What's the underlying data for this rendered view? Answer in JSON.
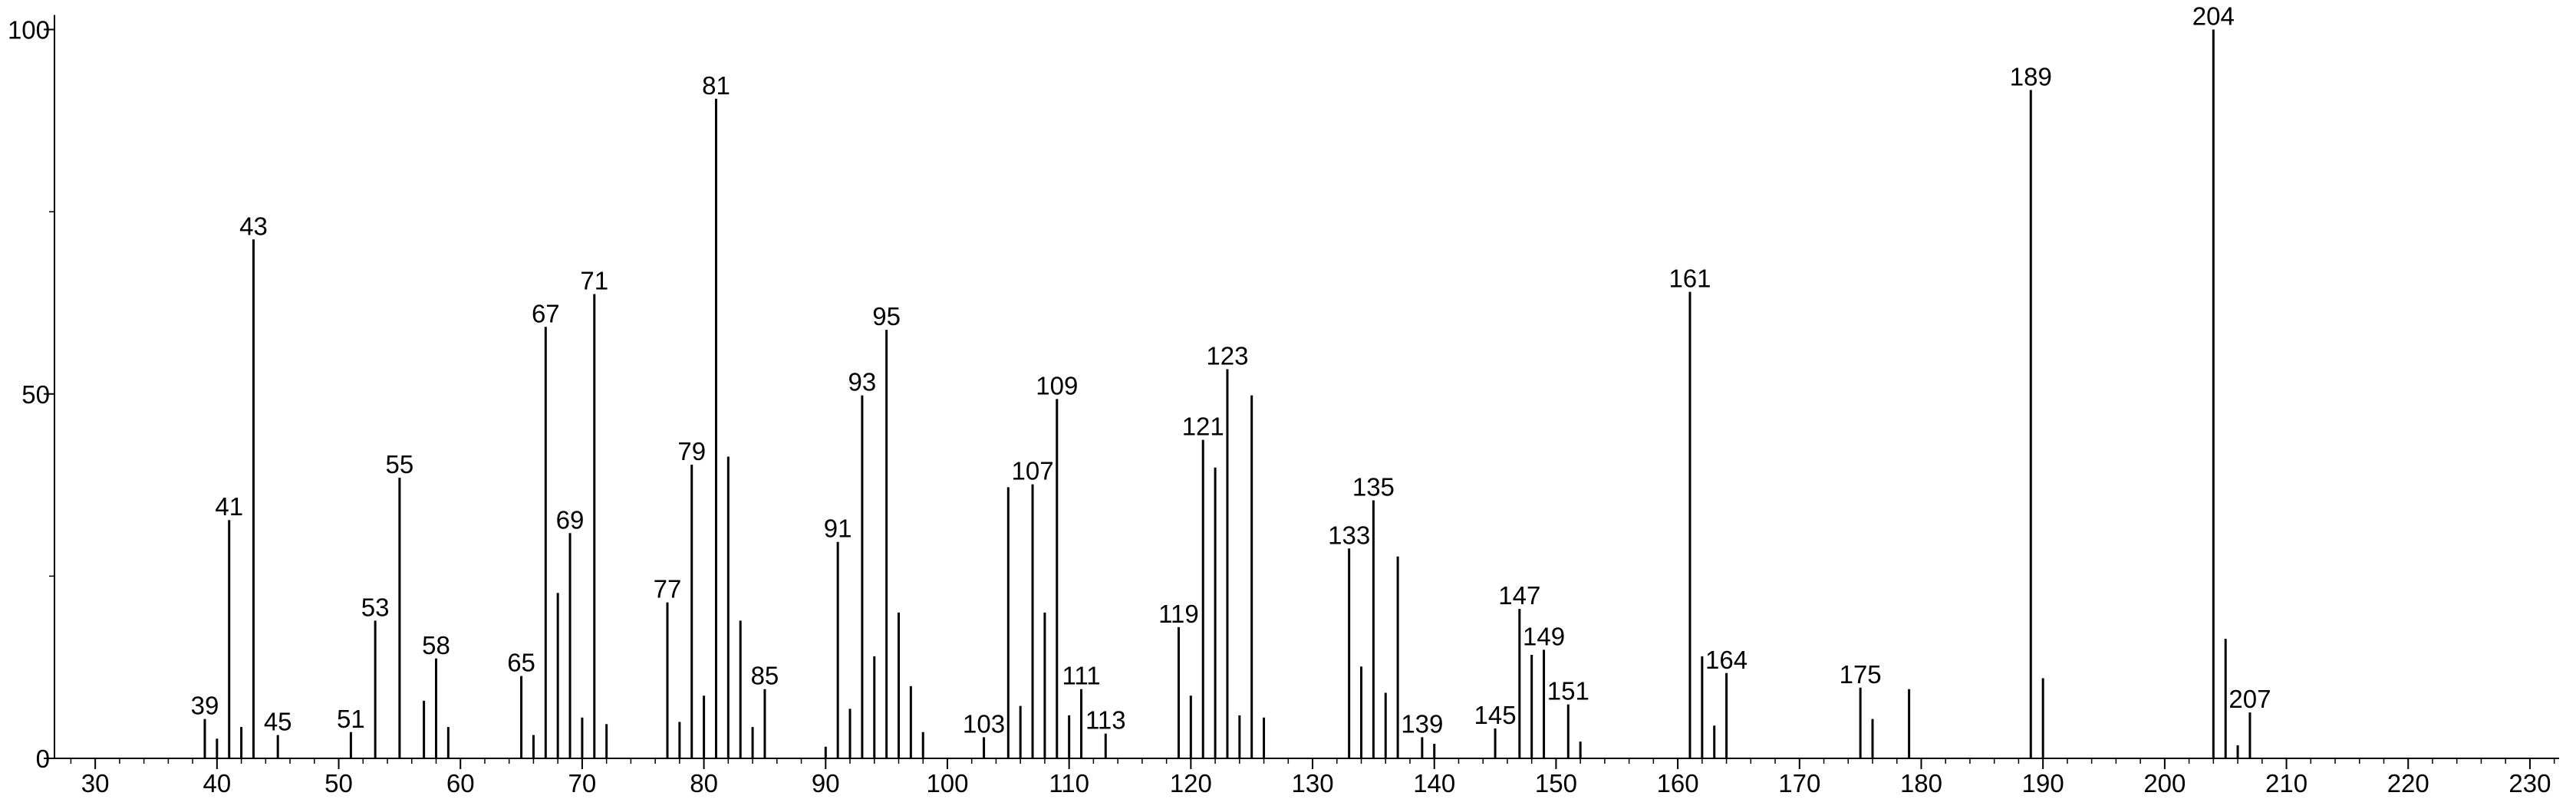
{
  "chart_data": {
    "type": "stem",
    "x": [
      39,
      40,
      41,
      42,
      43,
      45,
      51,
      53,
      55,
      57,
      58,
      59,
      65,
      66,
      67,
      68,
      69,
      70,
      71,
      72,
      77,
      78,
      79,
      80,
      81,
      82,
      83,
      84,
      85,
      90,
      91,
      92,
      93,
      94,
      95,
      96,
      97,
      98,
      103,
      105,
      106,
      107,
      108,
      109,
      110,
      111,
      113,
      119,
      120,
      121,
      122,
      123,
      124,
      125,
      126,
      133,
      134,
      135,
      136,
      137,
      139,
      140,
      145,
      147,
      148,
      149,
      151,
      152,
      161,
      162,
      163,
      164,
      175,
      176,
      179,
      189,
      190,
      204,
      205,
      206,
      207
    ],
    "values": [
      5.4,
      2.7,
      32.7,
      4.3,
      71.2,
      3.2,
      3.6,
      18.9,
      38.5,
      7.9,
      13.7,
      4.3,
      11.3,
      3.2,
      59.2,
      22.7,
      30.9,
      5.6,
      63.7,
      4.7,
      21.4,
      5,
      40.3,
      8.6,
      90.5,
      41.4,
      18.9,
      4.3,
      9.5,
      1.6,
      29.7,
      6.8,
      49.8,
      14,
      58.8,
      20,
      9.9,
      3.6,
      2.9,
      37.2,
      7.2,
      37.6,
      20,
      49.3,
      5.9,
      9.5,
      3.4,
      18,
      8.6,
      43.7,
      39.9,
      53.4,
      5.9,
      49.8,
      5.6,
      28.8,
      12.6,
      35.4,
      9,
      27.7,
      2.9,
      2,
      4.1,
      20.5,
      14.2,
      14.9,
      7.4,
      2.3,
      64,
      14,
      4.5,
      11.7,
      9.7,
      5.4,
      9.5,
      91.7,
      11,
      100,
      16.4,
      1.8,
      6.3
    ],
    "point_labels": [
      "39",
      null,
      "41",
      null,
      "43",
      "45",
      "51",
      "53",
      "55",
      null,
      "58",
      null,
      "65",
      null,
      "67",
      null,
      "69",
      null,
      "71",
      null,
      "77",
      null,
      "79",
      null,
      "81",
      null,
      null,
      null,
      "85",
      null,
      "91",
      null,
      "93",
      null,
      "95",
      null,
      null,
      null,
      "103",
      null,
      null,
      "107",
      null,
      "109",
      null,
      "111",
      "113",
      "119",
      null,
      "121",
      null,
      "123",
      null,
      null,
      null,
      "133",
      null,
      "135",
      null,
      null,
      "139",
      null,
      "145",
      "147",
      null,
      "149",
      "151",
      null,
      "161",
      null,
      null,
      "164",
      "175",
      null,
      null,
      "189",
      null,
      "204",
      null,
      null,
      "207"
    ],
    "color": "#000000",
    "xlim": [
      26.65,
      232.4
    ],
    "xticks": [
      30,
      40,
      50,
      60,
      70,
      80,
      90,
      100,
      110,
      120,
      130,
      140,
      150,
      160,
      170,
      180,
      190,
      200,
      210,
      220,
      230
    ],
    "xminor": 2,
    "ylim": [
      0,
      102
    ],
    "yticks": [
      0,
      50,
      100
    ],
    "yminor": 25
  }
}
